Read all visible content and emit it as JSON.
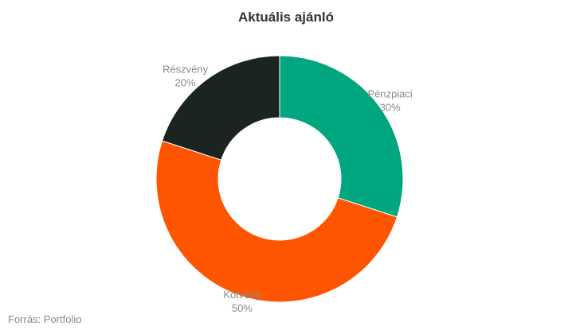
{
  "chart_data": {
    "type": "pie",
    "title": "Aktuális ajánló",
    "donut": true,
    "slices": [
      {
        "label": "Pénzpiaci",
        "value": 30,
        "value_label": "30%",
        "color": "#00a67e"
      },
      {
        "label": "Kötvény",
        "value": 50,
        "value_label": "50%",
        "color": "#ff5500"
      },
      {
        "label": "Részvény",
        "value": 20,
        "value_label": "20%",
        "color": "#1c2421"
      }
    ],
    "legend": "none"
  },
  "source": "Forrás: Portfolio"
}
